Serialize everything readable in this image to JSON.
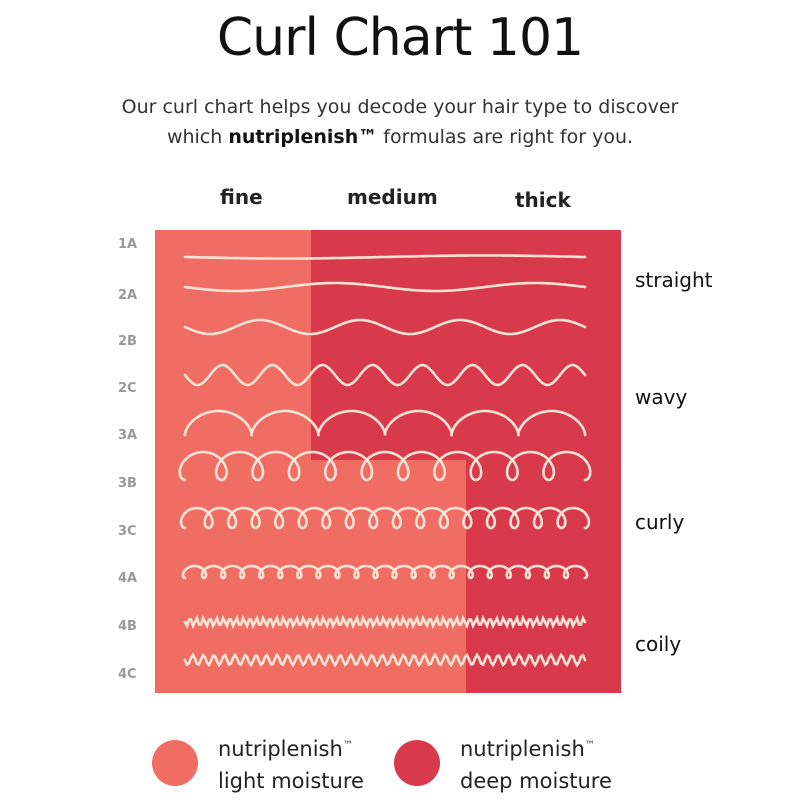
{
  "title": "Curl Chart 101",
  "subtitle": {
    "line1": "Our curl chart helps you decode your hair type to discover",
    "line2_pre": "which ",
    "line2_brand": "nutriplenish™",
    "line2_post": " formulas are right for you."
  },
  "columns": [
    "fine",
    "medium",
    "thick"
  ],
  "rows": [
    "1A",
    "2A",
    "2B",
    "2C",
    "3A",
    "3B",
    "3C",
    "4A",
    "4B",
    "4C"
  ],
  "categories": [
    "straight",
    "wavy",
    "curly",
    "coily"
  ],
  "colors": {
    "light": "#ef6d62",
    "dark": "#d8394b",
    "strand": "#fbe3d6"
  },
  "legend": [
    {
      "brand": "nutriplenish",
      "tm": "™",
      "label": "light moisture",
      "color": "#ef6d62"
    },
    {
      "brand": "nutriplenish",
      "tm": "™",
      "label": "deep moisture",
      "color": "#d8394b"
    }
  ]
}
